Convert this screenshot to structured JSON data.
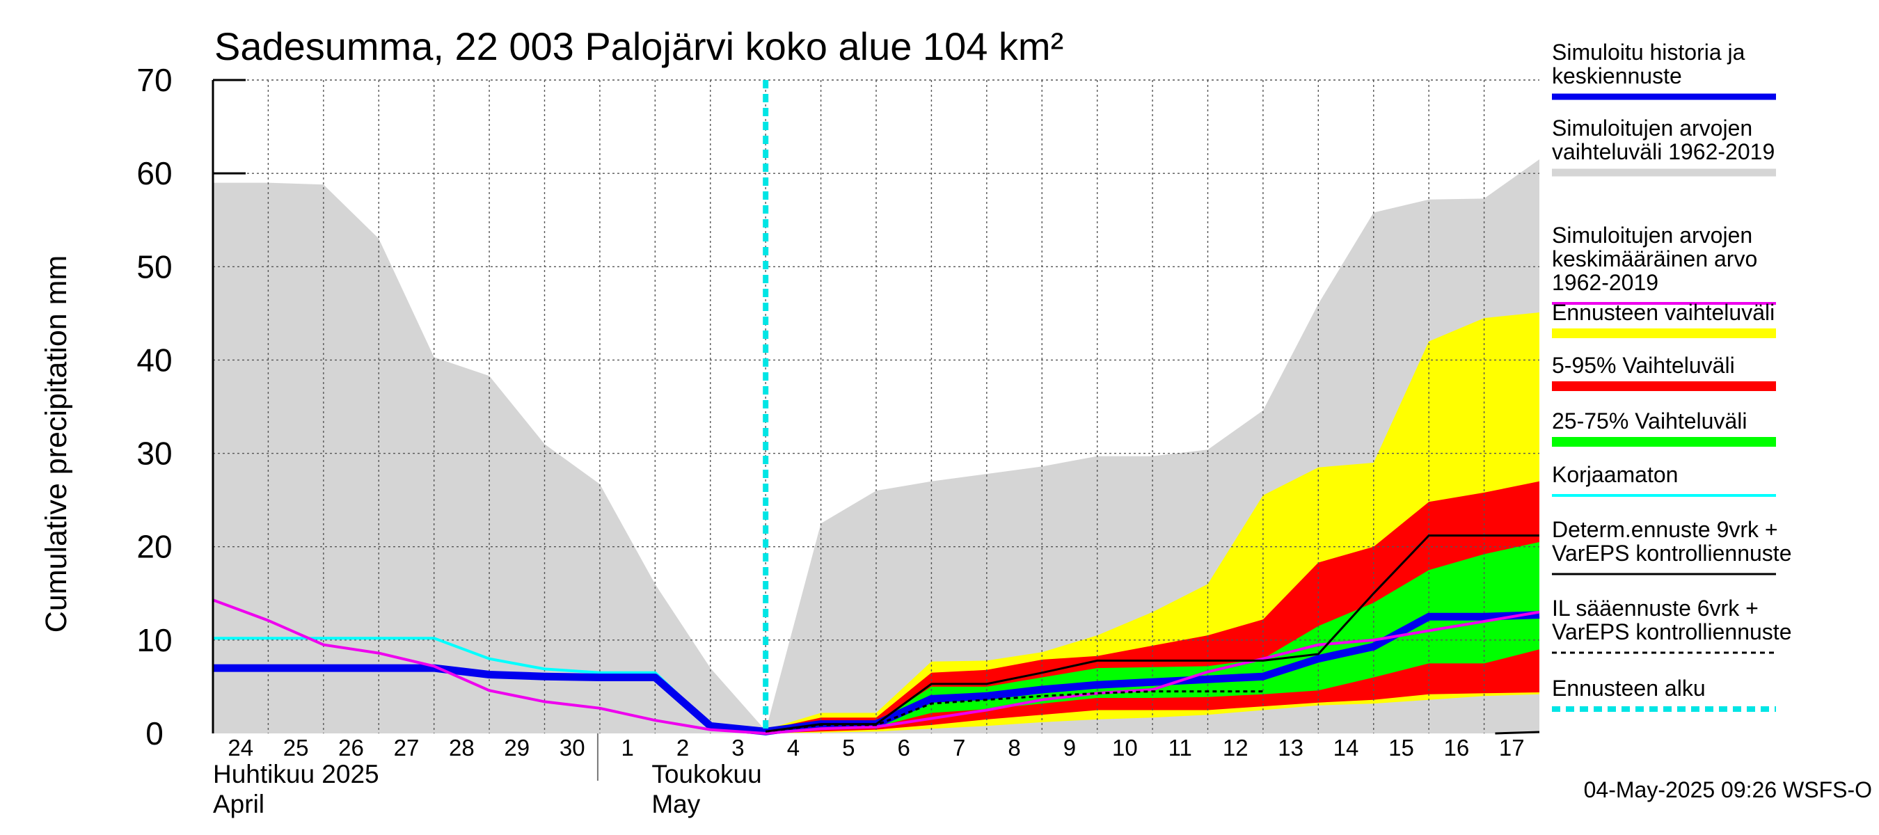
{
  "chart_data": {
    "type": "area",
    "title": "Sadesumma, 22 003 Palojärvi koko alue 104 km²",
    "ylabel": "Cumulative precipitation   mm",
    "ylim": [
      0,
      70
    ],
    "yticks": [
      0,
      10,
      20,
      30,
      40,
      50,
      60,
      70
    ],
    "grid": true,
    "legend_position": "right",
    "x_labels": [
      "24",
      "25",
      "26",
      "27",
      "28",
      "29",
      "30",
      "1",
      "2",
      "3",
      "4",
      "5",
      "6",
      "7",
      "8",
      "9",
      "10",
      "11",
      "12",
      "13",
      "14",
      "15",
      "16",
      "17"
    ],
    "month_labels": [
      {
        "fi": "Huhtikuu  2025",
        "en": "April"
      },
      {
        "fi": "Toukokuu",
        "en": "May"
      }
    ],
    "forecast_start_index": 10,
    "history_range": {
      "name": "Simuloitujen arvojen vaihteluväli 1962-2019",
      "color": "#d5d5d5",
      "upper": [
        59,
        59,
        58.8,
        53,
        40.3,
        38.3,
        31,
        26.7,
        16,
        7,
        0.3,
        22.5,
        26,
        27,
        27.8,
        28.6,
        29.7,
        29.7,
        30.4,
        34.6,
        46,
        55.8,
        57.2,
        57.3,
        61.5
      ],
      "lower": [
        0,
        0,
        0,
        0,
        0,
        0,
        0,
        0,
        0,
        0,
        0,
        0,
        0,
        0,
        0,
        0,
        0,
        0,
        0,
        0,
        0,
        0,
        0,
        0,
        0
      ]
    },
    "forecast_bands": [
      {
        "name": "Ennusteen vaihteluväli",
        "color": "#ffff00",
        "upper": [
          0.4,
          2.2,
          2.2,
          7.7,
          7.8,
          8.7,
          10.5,
          13,
          16,
          25.5,
          28.5,
          29,
          42,
          44.5,
          45.1
        ],
        "lower": [
          0,
          0.1,
          0.2,
          0.5,
          0.8,
          1.2,
          1.5,
          1.7,
          2.0,
          2.5,
          3.0,
          3.2,
          3.6,
          4.0,
          4.2
        ]
      },
      {
        "name": "5-95% Vaihteluväli",
        "color": "#ff0000",
        "upper": [
          0.4,
          1.7,
          1.7,
          6.5,
          6.8,
          7.9,
          8.3,
          9.4,
          10.5,
          12.2,
          18.3,
          20,
          24.8,
          25.8,
          27
        ],
        "lower": [
          0,
          0.2,
          0.4,
          0.9,
          1.5,
          2.0,
          2.5,
          2.5,
          2.5,
          2.9,
          3.3,
          3.6,
          4.2,
          4.3,
          4.4
        ]
      },
      {
        "name": "25-75% Vaihteluväli",
        "color": "#00ff00",
        "upper": [
          0.3,
          1.2,
          1.2,
          5.0,
          5.0,
          6.0,
          7.0,
          7.1,
          7.2,
          8.0,
          11.5,
          14.0,
          17.5,
          19.2,
          20.5
        ],
        "lower": [
          0.1,
          0.5,
          0.7,
          2.2,
          2.6,
          3.2,
          3.8,
          3.8,
          3.9,
          4.2,
          4.6,
          6.0,
          7.5,
          7.5,
          9.0
        ]
      }
    ],
    "series": [
      {
        "name": "Simuloitu historia ja keskiennuste",
        "color": "#0000ee",
        "x_start": 0,
        "values": [
          7,
          7,
          7,
          7,
          7,
          6.3,
          6.1,
          6,
          6,
          0.8,
          0.2,
          1.0,
          1.0,
          3.7,
          4.0,
          4.7,
          5.2,
          5.5,
          5.8,
          6.1,
          8.0,
          9.3,
          12.5,
          12.5,
          12.7
        ]
      },
      {
        "name": "Simuloitujen arvojen keskimääräinen arvo 1962-2019",
        "color": "#ee00ee",
        "x_start": 0,
        "values": [
          14.3,
          12.1,
          9.5,
          8.6,
          7.2,
          4.6,
          3.4,
          2.7,
          1.4,
          0.4,
          0,
          0.5,
          0.7,
          1.6,
          2.5,
          3.6,
          4.3,
          4.7,
          6.6,
          8.0,
          9.5,
          10.0,
          11.0,
          12.0,
          13.0
        ]
      },
      {
        "name": "Korjaamaton",
        "color": "#00ffff",
        "x_start": 0,
        "values": [
          10.2,
          10.2,
          10.2,
          10.2,
          10.2,
          8.0,
          6.9,
          6.5,
          6.5,
          0.9,
          0
        ]
      },
      {
        "name": "Determ.ennuste 9vrk + VarEPS kontrolliennuste",
        "color": "#000000",
        "x_start": 10,
        "values": [
          0.2,
          1.0,
          1.0,
          5.3,
          5.3,
          6.5,
          7.8,
          7.8,
          7.8,
          7.8,
          8.5,
          15,
          21.2,
          21.2,
          21.2
        ]
      },
      {
        "name": "IL sääennuste 6vrk  + VarEPS kontrolliennuste",
        "color": "#000000",
        "dashed": true,
        "x_start": 10,
        "values": [
          0.2,
          0.9,
          0.9,
          3.2,
          3.6,
          4.0,
          4.3,
          4.5,
          4.5,
          4.5
        ]
      }
    ],
    "forecast_start_label": "Ennusteen alku",
    "timestamp": "04-May-2025 09:26 WSFS-O"
  },
  "legend": [
    {
      "lines": [
        "Simuloitu historia ja",
        "keskiennuste"
      ],
      "color": "#0000ee",
      "style": "solid",
      "width": 9
    },
    {
      "lines": [
        "Simuloitujen arvojen",
        "vaihteluväli 1962-2019"
      ],
      "color": "#d5d5d5",
      "style": "solid",
      "width": 11
    },
    {
      "lines": [
        "Simuloitujen arvojen",
        "keskimääräinen arvo",
        "   1962-2019"
      ],
      "color": "#ee00ee",
      "style": "solid",
      "width": 4
    },
    {
      "lines": [
        "Ennusteen vaihteluväli"
      ],
      "color": "#ffff00",
      "style": "solid",
      "width": 14
    },
    {
      "lines": [
        "5-95% Vaihteluväli"
      ],
      "color": "#ff0000",
      "style": "solid",
      "width": 14
    },
    {
      "lines": [
        "25-75% Vaihteluväli"
      ],
      "color": "#00ff00",
      "style": "solid",
      "width": 14
    },
    {
      "lines": [
        "Korjaamaton"
      ],
      "color": "#00ffff",
      "style": "solid",
      "width": 4
    },
    {
      "lines": [
        "Determ.ennuste 9vrk +",
        "VarEPS kontrolliennuste"
      ],
      "color": "#000000",
      "style": "solid",
      "width": 3
    },
    {
      "lines": [
        "IL sääennuste 6vrk  +",
        "  VarEPS kontrolliennuste"
      ],
      "color": "#000000",
      "style": "dashed",
      "width": 3
    },
    {
      "lines": [
        "Ennusteen alku"
      ],
      "color": "#00e5e5",
      "style": "dashed",
      "width": 8
    }
  ]
}
